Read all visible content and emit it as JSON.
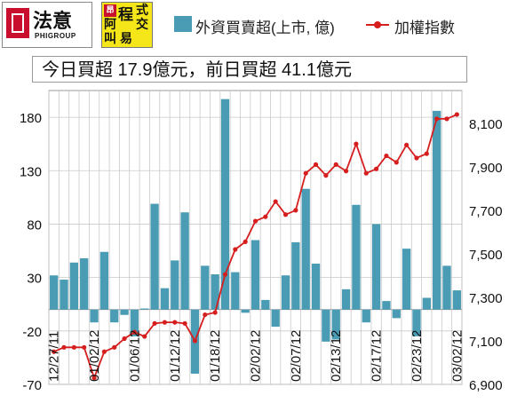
{
  "logos": {
    "logo1_text": "法意",
    "logo1_sub": "PHIGROUP",
    "logo2_chars": [
      "昂",
      "程",
      "式",
      "阿",
      "交",
      "叫",
      "易",
      ""
    ]
  },
  "subtitle": "今日買超 17.9億元，前日買超 41.1億元",
  "chart_data": {
    "type": "bar+line",
    "legend": [
      {
        "label": "外資買賣超(上市, 億)",
        "type": "bar",
        "color": "#4a9cb4"
      },
      {
        "label": "加權指數",
        "type": "line",
        "color": "#d61e1e"
      }
    ],
    "y_left": {
      "range": [
        -70,
        205
      ],
      "ticks": [
        -70,
        -20,
        30,
        80,
        130,
        180
      ]
    },
    "y_right": {
      "range": [
        6900,
        8250
      ],
      "ticks": [
        "6,900",
        "7,100",
        "7,300",
        "7,500",
        "7,700",
        "7,900",
        "8,100"
      ],
      "tick_values": [
        6900,
        7100,
        7300,
        7500,
        7700,
        7900,
        8100
      ]
    },
    "x_labels": [
      "12/27/11",
      "01/02/12",
      "01/06/12",
      "01/12/12",
      "01/18/12",
      "02/02/12",
      "02/07/12",
      "02/13/12",
      "02/17/12",
      "02/23/12",
      "03/02/12"
    ],
    "x_label_indices": [
      0,
      4,
      8,
      12,
      16,
      20,
      24,
      28,
      32,
      36,
      40
    ],
    "series": [
      {
        "name": "外資買賣超(上市, 億)",
        "type": "bar",
        "values": [
          32,
          28,
          44,
          48,
          -12,
          54,
          -12,
          -5,
          -25,
          1,
          99,
          20,
          46,
          91,
          -60,
          41,
          33,
          197,
          35,
          -3,
          65,
          9,
          -16,
          32,
          63,
          113,
          43,
          -30,
          -28,
          19,
          98,
          -12,
          80,
          8,
          -8,
          57,
          -25,
          11,
          186,
          41,
          18
        ]
      },
      {
        "name": "加權指數",
        "type": "line",
        "values": [
          7050,
          7070,
          7070,
          7070,
          6930,
          7050,
          7070,
          7110,
          7140,
          7120,
          7180,
          7185,
          7185,
          7180,
          7100,
          7220,
          7230,
          7405,
          7520,
          7555,
          7650,
          7670,
          7740,
          7680,
          7700,
          7870,
          7910,
          7860,
          7910,
          7880,
          8005,
          7870,
          7890,
          7950,
          7920,
          8000,
          7940,
          7960,
          8120,
          8120,
          8140
        ]
      }
    ],
    "grid": true
  }
}
